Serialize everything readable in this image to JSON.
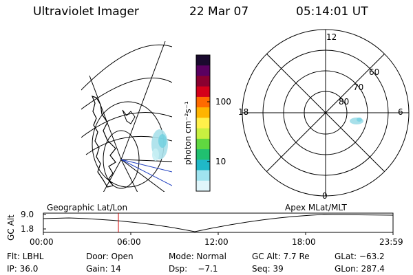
{
  "header": {
    "instrument": "Ultraviolet Imager",
    "date": "22 Mar 07",
    "time": "05:14:01 UT"
  },
  "colorbar": {
    "unit_label": "photon cm⁻²s⁻¹",
    "ticks": [
      "100",
      "10"
    ],
    "colors": [
      "#1a0a2e",
      "#5a0060",
      "#8a0030",
      "#d4001a",
      "#ff6a00",
      "#ffb400",
      "#fff04a",
      "#c8f040",
      "#60d840",
      "#20c070",
      "#20b8c8",
      "#a0e4f0",
      "#e0f6fb"
    ]
  },
  "polar_plot": {
    "mlt_labels": {
      "top": "12",
      "left": "18",
      "right": "6",
      "bottom": "0"
    },
    "lat_labels": [
      "60",
      "70",
      "80"
    ]
  },
  "timeline": {
    "left_label": "Geographic Lat/Lon",
    "right_label": "Apex MLat/MLT",
    "y_axis_label": "GC Alt",
    "y_ticks": [
      "9.0",
      "1.8"
    ],
    "x_ticks": [
      "00:00",
      "06:00",
      "12:00",
      "18:00",
      "23:59"
    ],
    "cursor_color": "#d00000"
  },
  "info": {
    "row1": {
      "filter": "Flt: LBHL",
      "door": "Door: Open",
      "mode": "Mode: Normal",
      "gc_alt": "GC Alt: 7.7 Re",
      "glat": "GLat: −63.2"
    },
    "row2": {
      "ip": "IP: 36.0",
      "gain": "Gain: 14",
      "dsp": "Dsp:    −7.1",
      "seq": "Seq: 39",
      "glon": "GLon: 287.4"
    }
  }
}
